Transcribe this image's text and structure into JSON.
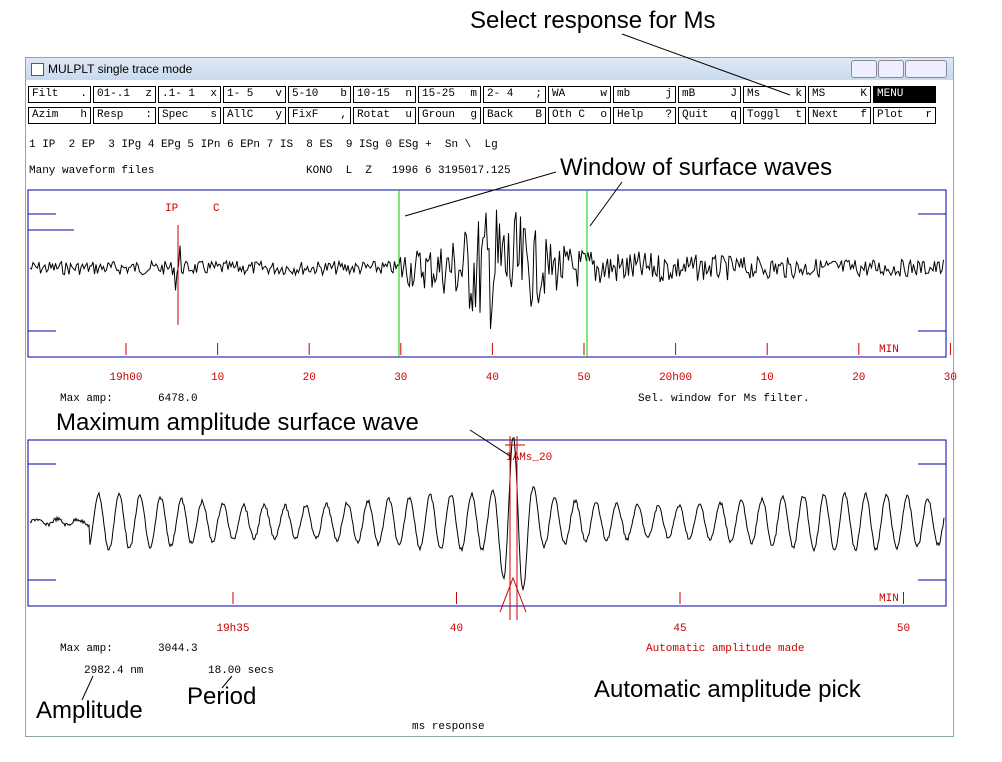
{
  "window": {
    "title": "MULPLT single trace mode"
  },
  "buttons": [
    [
      [
        "Filt",
        "."
      ],
      [
        "01-.1",
        "z"
      ],
      [
        ".1- 1",
        "x"
      ],
      [
        "1- 5",
        "v"
      ],
      [
        "5-10",
        "b"
      ],
      [
        "10-15",
        "n"
      ],
      [
        "15-25",
        "m"
      ],
      [
        "2- 4",
        ";"
      ],
      [
        "WA",
        "w"
      ],
      [
        "mb",
        "j"
      ],
      [
        "mB",
        "J"
      ],
      [
        "Ms",
        "k"
      ],
      [
        "MS",
        "K"
      ],
      [
        "MENU",
        ""
      ]
    ],
    [
      [
        "Azim",
        "h"
      ],
      [
        "Resp",
        ":"
      ],
      [
        "Spec",
        "s"
      ],
      [
        "AllC",
        "y"
      ],
      [
        "FixF",
        ","
      ],
      [
        "Rotat",
        "u"
      ],
      [
        "Groun",
        "g"
      ],
      [
        "Back",
        "B"
      ],
      [
        "Oth C",
        "o"
      ],
      [
        "Help",
        "?"
      ],
      [
        "Quit",
        "q"
      ],
      [
        "Toggl",
        "t"
      ],
      [
        "Next",
        "f"
      ],
      [
        "Plot",
        "r"
      ]
    ]
  ],
  "phase_line": "1 IP  2 EP  3 IPg 4 EPg 5 IPn 6 EPn 7 IS  8 ES  9 ISg 0 ESg +  Sn \\  Lg",
  "header": {
    "files": "Many waveform files",
    "station": "KONO  L  Z   1996 6 3195017.125"
  },
  "top_panel": {
    "phase": "IP",
    "polarity": "C",
    "unit": "MIN",
    "ticks": [
      "19h00",
      "10",
      "20",
      "30",
      "40",
      "50",
      "20h00",
      "10",
      "20",
      "30"
    ],
    "max_amp_label": "Max amp:",
    "max_amp": "6478.0",
    "message": "Sel. window for Ms filter."
  },
  "bottom_panel": {
    "pick": "IAMs_20",
    "unit": "MIN",
    "ticks": [
      "19h35",
      "40",
      "45",
      "50"
    ],
    "max_amp_label": "Max amp:",
    "max_amp": "3044.3",
    "amplitude": "2982.4 nm",
    "period": "18.00 secs",
    "message": "Automatic amplitude made",
    "footer": "ms response"
  },
  "annotations": {
    "select_response": "Select response for Ms",
    "window": "Window of surface waves",
    "max_amp": "Maximum amplitude surface wave",
    "amplitude": "Amplitude",
    "period": "Period",
    "auto_pick": "Automatic amplitude pick"
  }
}
